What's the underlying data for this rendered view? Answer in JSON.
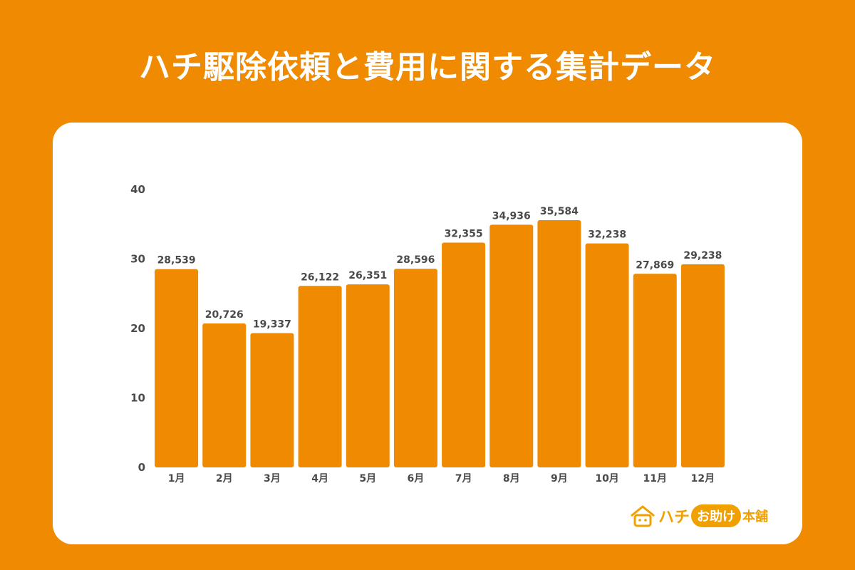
{
  "title": "ハチ駆除依頼と費用に関する集計データ",
  "colors": {
    "background": "#F08A00",
    "bar": "#F08A00",
    "card": "#FFFFFF",
    "text": "#4A4A4A",
    "logo": "#F0A000"
  },
  "logo": {
    "icon": "house-bee-icon",
    "text1": "ハチ",
    "pill": "お助け",
    "text2": "本舗"
  },
  "chart_data": {
    "type": "bar",
    "title": "",
    "xlabel": "",
    "ylabel": "",
    "ylim": [
      0,
      40
    ],
    "yticks": [
      "0",
      "10",
      "20",
      "30",
      "40"
    ],
    "grid": false,
    "categories": [
      "1月",
      "2月",
      "3月",
      "4月",
      "5月",
      "6月",
      "7月",
      "8月",
      "9月",
      "10月",
      "11月",
      "12月"
    ],
    "values": [
      28.539,
      20.726,
      19.337,
      26.122,
      26.351,
      28.596,
      32.355,
      34.936,
      35.584,
      32.238,
      27.869,
      29.238
    ],
    "data_labels": [
      "28,539",
      "20,726",
      "19,337",
      "26,122",
      "26,351",
      "28,596",
      "32,355",
      "34,936",
      "35,584",
      "32,238",
      "27,869",
      "29,238"
    ]
  }
}
